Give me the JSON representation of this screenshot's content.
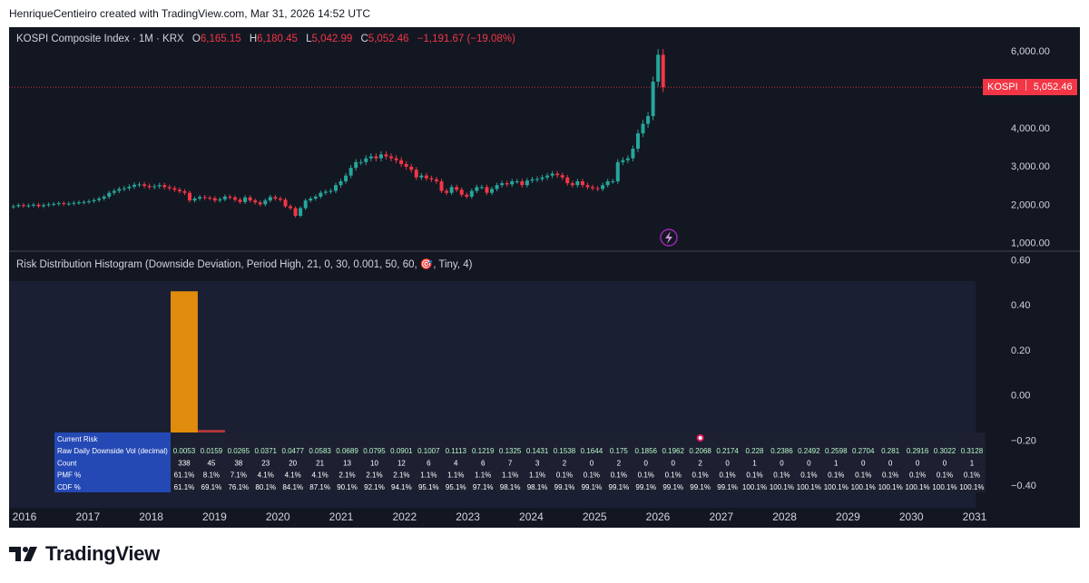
{
  "header": {
    "credit": "HenriqueCentieiro created with TradingView.com, Mar 31, 2026 14:52 UTC"
  },
  "price_legend": {
    "title": "KOSPI Composite Index · 1M · KRX",
    "o_label": "O",
    "o_value": "6,165.15",
    "h_label": "H",
    "h_value": "6,180.45",
    "l_label": "L",
    "l_value": "5,042.99",
    "c_label": "C",
    "c_value": "5,052.46",
    "change": "−1,191.67 (−19.08%)"
  },
  "indicator_legend": {
    "title": "Risk Distribution Histogram (Downside Deviation, Period High, 21, 0, 30, 0.001, 50, 60, 🎯, Tiny, 4)"
  },
  "price_badge": {
    "symbol": "KOSPI",
    "value": "5,052.46"
  },
  "footer": {
    "brand": "TradingView"
  },
  "colors": {
    "background": "#131722",
    "up": "#26a69a",
    "down": "#f23645",
    "histogram_first": "#e08c0c",
    "histogram_rest": "#b5383c",
    "table_header": "#2449b5"
  },
  "icons": {
    "lightning": "lightning-icon",
    "target": "target-icon"
  },
  "chart_data": [
    {
      "type": "candlestick",
      "title": "KOSPI Composite Index · 1M · KRX",
      "x_ticks": [
        "2016",
        "2017",
        "2018",
        "2019",
        "2020",
        "2021",
        "2022",
        "2023",
        "2024",
        "2025",
        "2026",
        "2027",
        "2028",
        "2029",
        "2030",
        "2031"
      ],
      "y_ticks": [
        "1,000.00",
        "2,000.00",
        "3,000.00",
        "4,000.00",
        "5,000.00",
        "6,000.00"
      ],
      "ylim": [
        850,
        6500
      ],
      "last_close": 5052.46,
      "series_close": [
        1950,
        1980,
        1960,
        1970,
        1990,
        1950,
        1980,
        2000,
        2010,
        2030,
        2010,
        2020,
        2040,
        2050,
        2060,
        2080,
        2110,
        2150,
        2200,
        2300,
        2350,
        2400,
        2420,
        2460,
        2510,
        2520,
        2480,
        2450,
        2470,
        2500,
        2450,
        2420,
        2380,
        2340,
        2300,
        2100,
        2150,
        2190,
        2170,
        2160,
        2100,
        2130,
        2200,
        2180,
        2120,
        2060,
        2180,
        2100,
        2050,
        2000,
        2100,
        2190,
        2150,
        2120,
        1950,
        1900,
        1700,
        1900,
        2100,
        2150,
        2200,
        2300,
        2330,
        2350,
        2500,
        2600,
        2750,
        2950,
        3100,
        3100,
        3200,
        3250,
        3200,
        3300,
        3250,
        3200,
        3150,
        3050,
        2980,
        2900,
        2700,
        2750,
        2680,
        2650,
        2600,
        2350,
        2300,
        2450,
        2380,
        2250,
        2200,
        2350,
        2450,
        2450,
        2300,
        2400,
        2500,
        2550,
        2520,
        2600,
        2600,
        2500,
        2620,
        2650,
        2660,
        2700,
        2750,
        2800,
        2760,
        2700,
        2550,
        2500,
        2600,
        2500,
        2450,
        2420,
        2400,
        2500,
        2600,
        2600,
        3100,
        3150,
        3200,
        3450,
        3850,
        4100,
        4300,
        5200,
        5900,
        5052.46
      ]
    },
    {
      "type": "bar",
      "title": "Risk Distribution Histogram (Downside Deviation, Period High, 21, 0, 30, 0.001, 50, 60, 🎯, Tiny, 4)",
      "y_ticks": [
        "0.60",
        "0.40",
        "0.20",
        "0.00",
        "−0.20",
        "−0.40"
      ],
      "ylim": [
        -0.5,
        0.63
      ],
      "categories": [
        "0.0053",
        "0.0159",
        "0.0265",
        "0.0371",
        "0.0477",
        "0.0583",
        "0.0689",
        "0.0795",
        "0.0901",
        "0.1007",
        "0.1113",
        "0.1219",
        "0.1325",
        "0.1431",
        "0.1538",
        "0.1644",
        "0.175",
        "0.1856",
        "0.1962",
        "0.2068",
        "0.2174",
        "0.228",
        "0.2386",
        "0.2492",
        "0.2598",
        "0.2704",
        "0.281",
        "0.2916",
        "0.3022",
        "0.3128"
      ],
      "values": [
        0.611,
        0.081,
        0.071,
        0.041,
        0.041,
        0.041,
        0.021,
        0.021,
        0.021,
        0.011,
        0.011,
        0.011,
        0.011,
        0.011,
        0.001,
        0.001,
        0.001,
        0.001,
        0.001,
        0.001,
        0.001,
        0.001,
        0.001,
        0.001,
        0.001,
        0.001,
        0.001,
        0.001,
        0.001,
        0.001
      ],
      "bar_heights": [
        0.46,
        -0.155,
        -0.175,
        -0.215,
        -0.225,
        -0.21,
        -0.23,
        -0.23,
        -0.24,
        -0.25,
        -0.25,
        -0.25,
        -0.24,
        -0.25,
        -0.25,
        0,
        -0.25,
        0,
        0,
        -0.25,
        0,
        -0.25,
        0,
        0,
        -0.25,
        0,
        0,
        0,
        0,
        -0.25
      ],
      "table": {
        "row_labels": [
          "Current Risk",
          "Raw Daily Downside Vol (decimal)",
          "Count",
          "PMF %",
          "CDF %"
        ],
        "counts": [
          "338",
          "45",
          "38",
          "23",
          "20",
          "21",
          "13",
          "10",
          "12",
          "6",
          "4",
          "6",
          "7",
          "3",
          "2",
          "0",
          "2",
          "0",
          "0",
          "2",
          "0",
          "1",
          "0",
          "0",
          "1",
          "0",
          "0",
          "0",
          "0",
          "1"
        ],
        "pmf": [
          "61.1%",
          "8.1%",
          "7.1%",
          "4.1%",
          "4.1%",
          "4.1%",
          "2.1%",
          "2.1%",
          "2.1%",
          "1.1%",
          "1.1%",
          "1.1%",
          "1.1%",
          "1.1%",
          "0.1%",
          "0.1%",
          "0.1%",
          "0.1%",
          "0.1%",
          "0.1%",
          "0.1%",
          "0.1%",
          "0.1%",
          "0.1%",
          "0.1%",
          "0.1%",
          "0.1%",
          "0.1%",
          "0.1%",
          "0.1%"
        ],
        "cdf": [
          "61.1%",
          "69.1%",
          "76.1%",
          "80.1%",
          "84.1%",
          "87.1%",
          "90.1%",
          "92.1%",
          "94.1%",
          "95.1%",
          "95.1%",
          "97.1%",
          "98.1%",
          "98.1%",
          "99.1%",
          "99.1%",
          "99.1%",
          "99.1%",
          "99.1%",
          "99.1%",
          "99.1%",
          "100.1%",
          "100.1%",
          "100.1%",
          "100.1%",
          "100.1%",
          "100.1%",
          "100.1%",
          "100.1%",
          "100.1%"
        ],
        "current_index": 19
      }
    }
  ]
}
